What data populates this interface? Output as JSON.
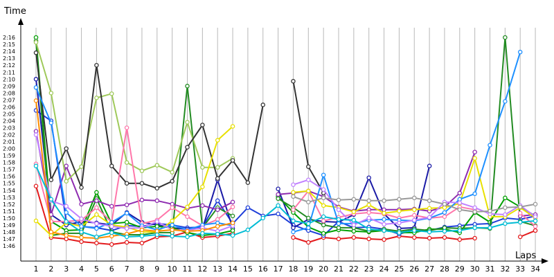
{
  "chart_data": {
    "type": "line",
    "ylabel": "Time",
    "xlabel": "Laps",
    "x": [
      1,
      2,
      3,
      4,
      5,
      6,
      7,
      8,
      9,
      10,
      11,
      12,
      13,
      14,
      15,
      16,
      17,
      18,
      19,
      20,
      21,
      22,
      23,
      24,
      25,
      26,
      27,
      28,
      29,
      30,
      31,
      32,
      33,
      34
    ],
    "y_tick_labels": [
      "1:46",
      "1:47",
      "1:48",
      "1:49",
      "1:50",
      "1:51",
      "1:52",
      "1:53",
      "1:54",
      "1:55",
      "1:56",
      "1:57",
      "1:58",
      "1:59",
      "2:00",
      "2:01",
      "2:02",
      "2:03",
      "2:04",
      "2:05",
      "2:06",
      "2:07",
      "2:08",
      "2:09",
      "2:10",
      "2:11",
      "2:12",
      "2:13",
      "2:14",
      "2:15",
      "2:16"
    ],
    "ylim_seconds": [
      104,
      140
    ],
    "grid": "vertical",
    "series": [
      {
        "color": "#e31a1c",
        "values": [
          114.6,
          107.2,
          107.0,
          106.6,
          106.4,
          106.2,
          106.5,
          106.4,
          107.3,
          107.4,
          108.0,
          107.2,
          107.4,
          107.8,
          null,
          null,
          null,
          107.2,
          106.5,
          107.2,
          107.0,
          107.2,
          107.0,
          106.9,
          107.4,
          107.2,
          107.1,
          107.2,
          106.9,
          107.1,
          null,
          null,
          107.3,
          108.2
        ]
      },
      {
        "color": "#1f3fd9",
        "values": [
          125.5,
          124.0,
          109.5,
          108.8,
          108.6,
          108.2,
          108.9,
          108.8,
          109.2,
          109.0,
          108.6,
          108.7,
          112.5,
          109.2,
          111.5,
          110.3,
          110.6,
          109.0,
          108.2,
          107.5,
          109.5,
          108.6,
          108.7,
          108.4,
          107.7,
          108.3,
          108.2,
          108.7,
          108.9,
          109.1,
          109.2,
          110.0,
          109.8,
          110.3
        ]
      },
      {
        "color": "#1a1aa6",
        "values": [
          130.0,
          110.5,
          109.0,
          109.5,
          109.3,
          109.0,
          110.8,
          109.4,
          109.0,
          108.6,
          108.4,
          108.5,
          115.5,
          108.5,
          null,
          null,
          114.2,
          108.6,
          109.8,
          109.5,
          109.4,
          110.5,
          115.8,
          110.6,
          108.5,
          108.6,
          117.5,
          null,
          null,
          null,
          null,
          null,
          null,
          null
        ]
      },
      {
        "color": "#00a000",
        "values": [
          136.0,
          109.5,
          108.2,
          108.3,
          113.7,
          109.2,
          109.4,
          108.6,
          108.8,
          108.6,
          107.9,
          107.5,
          107.7,
          108.2,
          null,
          null,
          113.1,
          110.8,
          108.7,
          107.8,
          108.3,
          108.1,
          108.0,
          108.2,
          107.9,
          107.9,
          108.4,
          108.4,
          107.9,
          110.8,
          109.4,
          112.9,
          111.6,
          110.3
        ]
      },
      {
        "color": "#228b22",
        "values": [
          135.5,
          107.5,
          107.8,
          107.8,
          112.8,
          108.0,
          107.6,
          107.6,
          107.9,
          107.9,
          129.0,
          108.6,
          111.5,
          110.3,
          null,
          null,
          112.8,
          111.5,
          110.0,
          109.0,
          108.6,
          108.6,
          108.1,
          108.4,
          108.1,
          108.4,
          108.2,
          108.6,
          108.5,
          108.6,
          108.5,
          136.0,
          109.5,
          108.9
        ]
      },
      {
        "color": "#8e2bb0",
        "values": [
          122.5,
          110.5,
          117.5,
          112.0,
          112.5,
          111.7,
          111.9,
          112.6,
          112.5,
          112.0,
          111.4,
          111.8,
          111.2,
          112.3,
          null,
          null,
          113.4,
          113.6,
          113.9,
          113.1,
          111.6,
          111.0,
          111.2,
          111.2,
          111.2,
          111.3,
          111.0,
          111.6,
          113.6,
          119.5,
          null,
          null,
          110.3,
          110.5
        ]
      },
      {
        "color": "#9fc95a",
        "values": [
          135.3,
          128.0,
          115.3,
          117.4,
          127.3,
          127.9,
          118.0,
          116.8,
          117.6,
          116.6,
          123.8,
          117.3,
          117.3,
          118.6,
          null,
          null,
          null,
          null,
          null,
          null,
          null,
          null,
          null,
          null,
          null,
          null,
          null,
          null,
          null,
          null,
          null,
          null,
          null,
          null
        ]
      },
      {
        "color": "#333333",
        "values": [
          133.8,
          115.5,
          120.0,
          114.4,
          132.0,
          117.5,
          115.0,
          115.0,
          114.3,
          115.3,
          120.2,
          123.4,
          115.7,
          118.3,
          115.1,
          126.3,
          null,
          129.7,
          117.4,
          113.6,
          null,
          null,
          null,
          null,
          null,
          null,
          null,
          null,
          null,
          null,
          null,
          null,
          null,
          null
        ]
      },
      {
        "color": "#ff77aa",
        "values": [
          117.8,
          109.5,
          109.5,
          109.7,
          111.5,
          109.4,
          123.0,
          109.2,
          109.7,
          111.5,
          110.2,
          108.9,
          109.8,
          111.6,
          null,
          null,
          null,
          111.2,
          113.9,
          109.6,
          110.1,
          110.6,
          110.8,
          110.6,
          110.0,
          110.4,
          110.0,
          110.2,
          111.6,
          111.2,
          null,
          null,
          110.7,
          108.8
        ]
      },
      {
        "color": "#e8e000",
        "values": [
          109.6,
          107.5,
          109.3,
          108.8,
          110.5,
          109.0,
          108.7,
          108.0,
          108.0,
          109.6,
          111.6,
          114.5,
          121.2,
          123.2,
          null,
          null,
          null,
          113.7,
          113.9,
          111.8,
          111.5,
          110.9,
          111.9,
          110.7,
          111.0,
          111.2,
          111.4,
          111.5,
          112.1,
          118.6,
          110.2,
          110.2,
          111.5,
          110.0
        ]
      },
      {
        "color": "#1e90ff",
        "values": [
          128.8,
          123.7,
          110.8,
          108.8,
          108.5,
          109.4,
          110.7,
          108.9,
          108.3,
          109.0,
          108.3,
          109.0,
          109.3,
          108.9,
          null,
          null,
          null,
          108.0,
          108.6,
          116.2,
          109.2,
          109.2,
          109.7,
          109.8,
          109.7,
          109.6,
          110.0,
          110.8,
          112.7,
          113.5,
          120.5,
          126.8,
          133.9,
          null
        ]
      },
      {
        "color": "#c080ff",
        "values": [
          122.0,
          112.5,
          111.7,
          109.9,
          109.2,
          108.8,
          108.5,
          108.6,
          109.5,
          108.3,
          108.2,
          108.6,
          108.1,
          108.9,
          null,
          null,
          null,
          114.8,
          115.5,
          114.1,
          111.2,
          109.0,
          110.0,
          109.1,
          109.3,
          109.7,
          110.1,
          112.3,
          112.2,
          111.5,
          110.6,
          110.5,
          111.8,
          110.2
        ]
      },
      {
        "color": "#ff8c00",
        "values": [
          126.9,
          108.0,
          107.5,
          107.2,
          107.1,
          107.4,
          107.7,
          108.3,
          108.1,
          108.3,
          108.1,
          108.2,
          108.8,
          109.3,
          null,
          null,
          null,
          null,
          null,
          null,
          null,
          null,
          null,
          null,
          null,
          null,
          null,
          null,
          null,
          null,
          null,
          null,
          null,
          null
        ]
      },
      {
        "color": "#00bcd4",
        "values": [
          117.5,
          112.7,
          109.5,
          108.0,
          107.3,
          107.9,
          107.3,
          107.4,
          107.6,
          107.4,
          107.3,
          107.8,
          107.7,
          107.5,
          108.3,
          110.0,
          111.8,
          109.6,
          109.2,
          110.2,
          109.8,
          109.7,
          108.4,
          108.2,
          107.9,
          108.2,
          108.0,
          108.1,
          108.2,
          108.6,
          108.6,
          109.2,
          109.4,
          109.6
        ]
      },
      {
        "color": "#999999",
        "values": [
          null,
          null,
          null,
          null,
          null,
          null,
          null,
          null,
          null,
          null,
          null,
          null,
          null,
          null,
          null,
          null,
          null,
          113.1,
          112.3,
          112.9,
          112.6,
          112.7,
          112.5,
          112.5,
          112.7,
          112.9,
          112.5,
          112.0,
          111.2,
          110.9,
          111.0,
          111.5,
          111.6,
          112.0
        ]
      }
    ]
  }
}
